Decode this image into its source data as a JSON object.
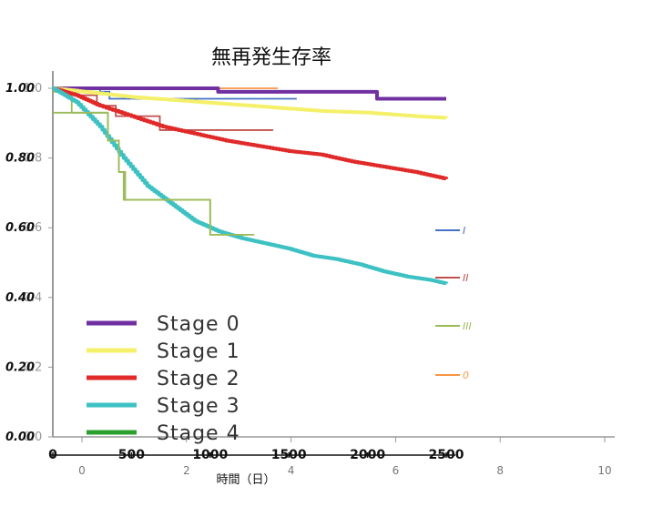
{
  "chart_data": {
    "type": "line",
    "title": "無再発生存率",
    "xlabel": "時間（日）",
    "ylabel": "",
    "x_unit": "days",
    "xlim": [
      0,
      2500
    ],
    "ylim": [
      0,
      1.0
    ],
    "x_ticks": [
      "0",
      "500",
      "1000",
      "1500",
      "2000",
      "2500"
    ],
    "y_ticks": [
      "0.00",
      "0.20",
      "0.40",
      "0.60",
      "0.80",
      "1.00"
    ],
    "ghost_y_ticks": [
      "0.0",
      "0.2",
      "0.4",
      "0.6",
      "0.8",
      "1.0"
    ],
    "ghost_x_ticks": [
      "0",
      "2",
      "4",
      "6",
      "8",
      "10"
    ],
    "legend_position": "bottom-left",
    "grid": false,
    "series": [
      {
        "name": "Stage 0",
        "color": "#7030a0",
        "step": true,
        "x": [
          0,
          1020,
          1050,
          2030,
          2060,
          2500
        ],
        "y": [
          1.0,
          1.0,
          0.99,
          0.99,
          0.97,
          0.97
        ]
      },
      {
        "name": "Stage 1",
        "color": "#f5f06a",
        "step": false,
        "x": [
          0,
          200,
          500,
          800,
          1100,
          1400,
          1700,
          2000,
          2300,
          2500
        ],
        "y": [
          1.0,
          0.99,
          0.975,
          0.965,
          0.955,
          0.945,
          0.935,
          0.93,
          0.92,
          0.915
        ]
      },
      {
        "name": "Stage 2",
        "color": "#e02929",
        "step": false,
        "x": [
          0,
          150,
          300,
          500,
          700,
          900,
          1100,
          1300,
          1500,
          1700,
          1900,
          2100,
          2300,
          2500
        ],
        "y": [
          1.0,
          0.98,
          0.95,
          0.92,
          0.89,
          0.87,
          0.85,
          0.835,
          0.82,
          0.81,
          0.79,
          0.775,
          0.76,
          0.74
        ]
      },
      {
        "name": "Stage 3",
        "color": "#3ec1c3",
        "step": false,
        "x": [
          0,
          150,
          300,
          450,
          600,
          750,
          900,
          1050,
          1200,
          1350,
          1500,
          1650,
          1800,
          1950,
          2100,
          2250,
          2400,
          2500
        ],
        "y": [
          1.0,
          0.96,
          0.89,
          0.8,
          0.72,
          0.67,
          0.62,
          0.59,
          0.57,
          0.555,
          0.54,
          0.52,
          0.51,
          0.495,
          0.475,
          0.46,
          0.45,
          0.44
        ]
      },
      {
        "name": "Stage 4",
        "color": "#2ca02c",
        "step": true,
        "x": [
          0,
          200,
          200,
          350,
          350,
          420,
          420,
          450,
          450,
          1000,
          1000,
          1280
        ],
        "y": [
          0.93,
          0.93,
          0.93,
          0.93,
          0.85,
          0.85,
          0.76,
          0.76,
          0.68,
          0.68,
          0.58,
          0.58
        ],
        "draw_style": "ghost-green"
      }
    ],
    "overlay_series": [
      {
        "name": "I",
        "color": "#4472c4",
        "x": [
          0,
          300,
          300,
          360,
          360,
          1550
        ],
        "y": [
          1.0,
          1.0,
          0.99,
          0.99,
          0.97,
          0.97
        ]
      },
      {
        "name": "II",
        "color": "#c0504d",
        "x": [
          0,
          150,
          150,
          280,
          280,
          400,
          400,
          680,
          680,
          1400
        ],
        "y": [
          1.0,
          1.0,
          0.98,
          0.98,
          0.95,
          0.95,
          0.92,
          0.92,
          0.88,
          0.88
        ]
      },
      {
        "name": "III",
        "color": "#9bbb59",
        "x": [
          0,
          120,
          120,
          350,
          350,
          420,
          420,
          460,
          460,
          1000,
          1000,
          1240
        ],
        "y": [
          0.99,
          0.99,
          0.93,
          0.93,
          0.85,
          0.85,
          0.76,
          0.76,
          0.68,
          0.68,
          0.58,
          0.58
        ]
      },
      {
        "name": "0",
        "color": "#f79646",
        "x": [
          0,
          1430
        ],
        "y": [
          1.0,
          1.0
        ]
      }
    ]
  }
}
